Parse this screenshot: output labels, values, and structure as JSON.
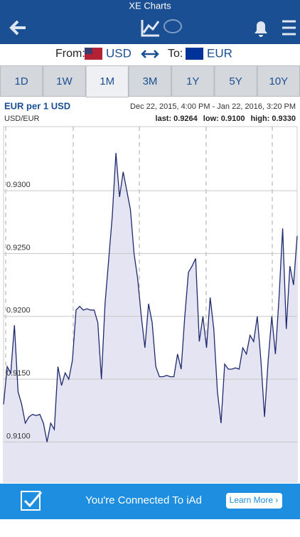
{
  "status_title": "XE Charts",
  "converter": {
    "from_label": "From:",
    "from": "USD",
    "to_label": "To:",
    "to": "EUR"
  },
  "tabs": [
    "1D",
    "1W",
    "1M",
    "3M",
    "1Y",
    "5Y",
    "10Y"
  ],
  "selected_tab": "1M",
  "chart_data": {
    "type": "line",
    "title": "EUR per 1 USD",
    "subtitle": "USD/EUR",
    "date_range": "Dec 22, 2015, 4:00 PM - Jan 22, 2016, 3:20 PM",
    "stats": [
      {
        "label": "last:",
        "value": "0.9264"
      },
      {
        "label": "low:",
        "value": "0.9100"
      },
      {
        "label": "high:",
        "value": "0.9330"
      }
    ],
    "color": "#1f2a6e",
    "fill": "#e4e4f3",
    "grid": true,
    "ylim": [
      0.9068,
      0.9351
    ],
    "yticks": [
      {
        "value": 0.91,
        "label": "0.9100"
      },
      {
        "value": 0.915,
        "label": "0.9150"
      },
      {
        "value": 0.92,
        "label": "0.9200"
      },
      {
        "value": 0.925,
        "label": "0.9250"
      },
      {
        "value": 0.93,
        "label": "0.9300"
      }
    ],
    "values": [
      0.913,
      0.916,
      0.9155,
      0.9193,
      0.914,
      0.913,
      0.9115,
      0.912,
      0.9122,
      0.9121,
      0.9122,
      0.9115,
      0.91,
      0.9115,
      0.911,
      0.916,
      0.9145,
      0.9155,
      0.915,
      0.9165,
      0.9205,
      0.9208,
      0.9205,
      0.9206,
      0.9205,
      0.9205,
      0.9195,
      0.915,
      0.921,
      0.9245,
      0.928,
      0.933,
      0.9295,
      0.9315,
      0.93,
      0.9285,
      0.925,
      0.923,
      0.92,
      0.9175,
      0.921,
      0.9195,
      0.916,
      0.9152,
      0.9152,
      0.9153,
      0.9152,
      0.9152,
      0.917,
      0.9158,
      0.92,
      0.9235,
      0.924,
      0.9246,
      0.918,
      0.92,
      0.9175,
      0.9215,
      0.919,
      0.914,
      0.9115,
      0.9162,
      0.9158,
      0.9158,
      0.9159,
      0.9158,
      0.9175,
      0.917,
      0.9185,
      0.918,
      0.92,
      0.9165,
      0.912,
      0.9165,
      0.92,
      0.917,
      0.9215,
      0.927,
      0.919,
      0.924,
      0.9225,
      0.9264
    ]
  },
  "ad": {
    "text": "You're Connected To iAd",
    "button": "Learn More ›"
  }
}
